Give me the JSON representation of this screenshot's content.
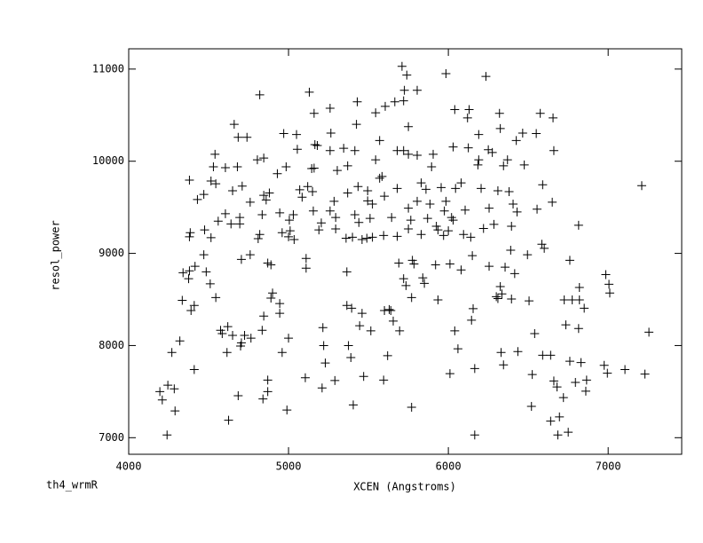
{
  "chart_data": {
    "type": "scatter",
    "x_label": "XCEN (Angstroms)",
    "y_label": "resol_power",
    "annotation": "th4_wrmR",
    "color": "#000000",
    "xlim": [
      4000,
      7460
    ],
    "ylim": [
      6820,
      11220
    ],
    "xticks": [
      4000,
      5000,
      6000,
      7000
    ],
    "yticks": [
      7000,
      8000,
      9000,
      10000,
      11000
    ],
    "x": [
      4240,
      4195,
      4210,
      4245,
      4285,
      4290,
      4270,
      4320,
      4335,
      4340,
      4380,
      4375,
      4415,
      4410,
      4390,
      4410,
      4385,
      4380,
      4380,
      4430,
      4470,
      4485,
      4510,
      4545,
      4475,
      4515,
      4540,
      4530,
      4545,
      4515,
      4470,
      4560,
      4585,
      4575,
      4620,
      4615,
      4625,
      4650,
      4685,
      4705,
      4700,
      4725,
      4765,
      4660,
      4685,
      4740,
      4680,
      4605,
      4650,
      4695,
      4695,
      4705,
      4710,
      4760,
      4760,
      4605,
      4640,
      4820,
      4805,
      4845,
      4820,
      4810,
      4835,
      4845,
      4880,
      4860,
      4870,
      4890,
      4845,
      4890,
      4900,
      4835,
      4840,
      4870,
      4870,
      4945,
      4945,
      4930,
      4970,
      4985,
      4945,
      4960,
      5005,
      5010,
      5000,
      5035,
      5030,
      4990,
      5000,
      4960,
      5050,
      5055,
      5070,
      5120,
      5085,
      5145,
      5110,
      5110,
      5155,
      5105,
      5130,
      5160,
      5165,
      5180,
      5160,
      5190,
      5150,
      5205,
      5215,
      5220,
      5230,
      5210,
      5260,
      5265,
      5260,
      5285,
      5260,
      5295,
      5295,
      5290,
      5305,
      5345,
      5370,
      5370,
      5360,
      5400,
      5365,
      5365,
      5395,
      5375,
      5390,
      5405,
      5415,
      5415,
      5430,
      5425,
      5435,
      5440,
      5460,
      5445,
      5460,
      5470,
      5495,
      5495,
      5490,
      5510,
      5525,
      5515,
      5525,
      5545,
      5545,
      5570,
      5585,
      5570,
      5605,
      5595,
      5600,
      5600,
      5595,
      5630,
      5620,
      5640,
      5645,
      5655,
      5680,
      5680,
      5665,
      5680,
      5690,
      5695,
      5710,
      5725,
      5740,
      5720,
      5750,
      5750,
      5720,
      5720,
      5735,
      5750,
      5765,
      5750,
      5775,
      5770,
      5770,
      5785,
      5805,
      5805,
      5805,
      5830,
      5830,
      5840,
      5850,
      5860,
      5895,
      5870,
      5885,
      5905,
      5920,
      5925,
      5935,
      5935,
      5955,
      5970,
      5975,
      5985,
      5985,
      6000,
      6010,
      6010,
      6020,
      6030,
      6040,
      6030,
      6045,
      6060,
      6040,
      6080,
      6080,
      6095,
      6105,
      6120,
      6130,
      6125,
      6140,
      6150,
      6145,
      6155,
      6165,
      6165,
      6190,
      6190,
      6185,
      6205,
      6220,
      6235,
      6250,
      6255,
      6255,
      6275,
      6285,
      6310,
      6300,
      6310,
      6320,
      6325,
      6345,
      6325,
      6335,
      6355,
      6330,
      6345,
      6370,
      6380,
      6395,
      6390,
      6395,
      6405,
      6415,
      6425,
      6430,
      6435,
      6465,
      6475,
      6495,
      6505,
      6520,
      6525,
      6550,
      6555,
      6540,
      6575,
      6585,
      6590,
      6600,
      6590,
      6640,
      6655,
      6640,
      6660,
      6680,
      6660,
      6650,
      6695,
      6685,
      6720,
      6735,
      6725,
      6760,
      6760,
      6750,
      6775,
      6795,
      6820,
      6815,
      6820,
      6815,
      6830,
      6860,
      6865,
      6850,
      6985,
      7005,
      7010,
      6975,
      6995,
      7105,
      7210,
      7230,
      7255
    ],
    "values": [
      7030,
      7500,
      7410,
      7570,
      7530,
      7290,
      7925,
      8050,
      8490,
      8790,
      8810,
      8725,
      8860,
      8435,
      8380,
      7740,
      9225,
      9180,
      9795,
      9585,
      8985,
      8800,
      8670,
      8520,
      9255,
      9170,
      10075,
      9940,
      9755,
      9785,
      9640,
      9350,
      8130,
      8165,
      8205,
      7925,
      7190,
      8110,
      7455,
      8030,
      7995,
      8110,
      8080,
      10400,
      10260,
      10260,
      9940,
      9930,
      9680,
      9390,
      9320,
      8935,
      9730,
      9555,
      8985,
      9430,
      9320,
      10720,
      10015,
      10035,
      9205,
      9160,
      9420,
      9630,
      9655,
      9580,
      8895,
      8875,
      8320,
      8515,
      8570,
      8165,
      7420,
      7500,
      7625,
      8455,
      8350,
      9865,
      10300,
      9940,
      9440,
      9225,
      9360,
      9245,
      9180,
      9150,
      9420,
      7300,
      8080,
      7925,
      10290,
      10130,
      9690,
      9725,
      9610,
      9920,
      8945,
      8840,
      9460,
      7650,
      10750,
      10520,
      10180,
      10170,
      9925,
      9255,
      9670,
      9330,
      8195,
      8000,
      7810,
      7540,
      10575,
      10305,
      10115,
      9565,
      9460,
      9390,
      9265,
      7620,
      9900,
      10140,
      9950,
      9655,
      9165,
      9175,
      8800,
      8435,
      8405,
      8000,
      7870,
      7355,
      10115,
      9420,
      10645,
      10400,
      9725,
      9335,
      9150,
      8215,
      8350,
      7665,
      9680,
      9570,
      9165,
      9380,
      9535,
      8160,
      9175,
      10015,
      10525,
      9815,
      9835,
      10225,
      10595,
      9195,
      9620,
      8380,
      7625,
      8390,
      7890,
      8380,
      9390,
      8265,
      9705,
      10115,
      10645,
      9185,
      8895,
      8160,
      11030,
      10770,
      10935,
      10655,
      10375,
      10075,
      10115,
      8725,
      8650,
      9490,
      9360,
      9265,
      8925,
      8520,
      7330,
      8885,
      9565,
      10770,
      10065,
      9765,
      9205,
      8735,
      8675,
      9695,
      9940,
      9380,
      9535,
      10075,
      8875,
      9295,
      9255,
      8495,
      9715,
      9195,
      9460,
      10950,
      9565,
      9245,
      8885,
      7695,
      9390,
      10155,
      10560,
      9360,
      9705,
      7965,
      8160,
      9765,
      8820,
      9205,
      9470,
      10470,
      10560,
      10145,
      9175,
      8975,
      8275,
      8400,
      7030,
      7750,
      10290,
      10015,
      9960,
      9705,
      9270,
      10920,
      10125,
      9490,
      8860,
      10095,
      9315,
      9680,
      8530,
      8510,
      10520,
      10355,
      9950,
      8640,
      8560,
      8850,
      7925,
      7790,
      10015,
      9670,
      9295,
      9035,
      8505,
      9535,
      8780,
      10225,
      9450,
      7935,
      10305,
      9960,
      8985,
      8485,
      7340,
      7685,
      10300,
      9480,
      8130,
      10520,
      9100,
      9745,
      9055,
      7895,
      7895,
      10470,
      7180,
      7615,
      7550,
      10115,
      9555,
      7225,
      7030,
      7435,
      8225,
      8495,
      8925,
      7830,
      7060,
      8495,
      7600,
      8495,
      9305,
      8630,
      8185,
      7815,
      7505,
      7625,
      8405,
      8770,
      8665,
      8570,
      7785,
      7700,
      7740,
      9735,
      7690,
      8145
    ]
  }
}
